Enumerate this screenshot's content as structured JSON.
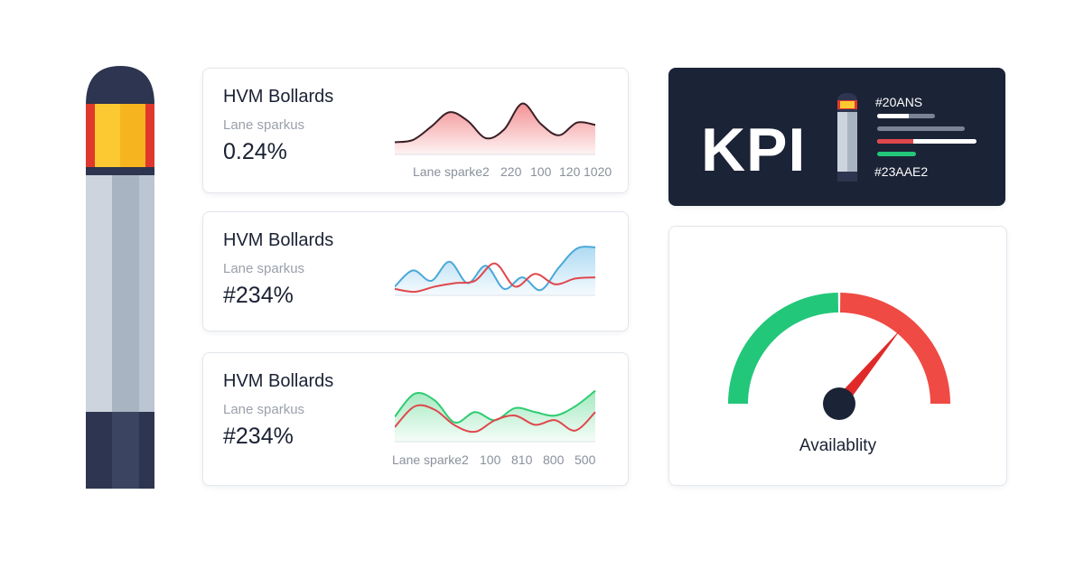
{
  "cards": [
    {
      "title": "HVM Bollards",
      "subtitle": "Lane sparkus",
      "value": "0.24%",
      "axis_labels": [
        "Lane sparke2",
        "220",
        "100",
        "120",
        "1020"
      ],
      "series": [
        {
          "color": "#e0474c",
          "fill": "#f28b8e",
          "line": "#3a1f26",
          "values": [
            18,
            22,
            45,
            70,
            55,
            25,
            40,
            85,
            50,
            30,
            52,
            48
          ]
        }
      ]
    },
    {
      "title": "HVM Bollards",
      "subtitle": "Lane sparkus",
      "value": "#234%",
      "axis_labels": [],
      "series": [
        {
          "color": "#4aa8d8",
          "fill": "#a9d8f2",
          "line": "#4aa8d8",
          "values": [
            12,
            40,
            22,
            55,
            18,
            48,
            8,
            28,
            6,
            45,
            78,
            80
          ]
        },
        {
          "color": "#e0474c",
          "fill": "none",
          "line": "#e0474c",
          "values": [
            8,
            3,
            12,
            18,
            22,
            52,
            12,
            34,
            16,
            26,
            28
          ]
        }
      ]
    },
    {
      "title": "HVM Bollards",
      "subtitle": "Lane sparkus",
      "value": "#234%",
      "axis_labels": [
        "Lane sparke2",
        "100",
        "810",
        "800",
        "500"
      ],
      "series": [
        {
          "color": "#2ecc71",
          "fill": "#9ee8bd",
          "line": "#2ecc71",
          "values": [
            40,
            80,
            68,
            30,
            48,
            34,
            55,
            48,
            42,
            58,
            85
          ]
        },
        {
          "color": "#e0474c",
          "fill": "none",
          "line": "#e0474c",
          "values": [
            22,
            58,
            52,
            25,
            14,
            34,
            42,
            26,
            34,
            16,
            48
          ]
        }
      ]
    }
  ],
  "kpi": {
    "label": "KPI",
    "code_top": "#20ANS",
    "code_bottom": "#23AAE2",
    "bars": [
      {
        "fill": 0.55,
        "color": "#ffffff",
        "track": "#7b8494"
      },
      {
        "fill": 0,
        "color": "#ffffff",
        "track": "#7b8494"
      },
      {
        "fill": 0.36,
        "color": "#e0474c",
        "track": "#ffffff"
      },
      {
        "fill": 1,
        "color": "#22c77a",
        "track": "#22c77a"
      }
    ]
  },
  "gauge": {
    "label": "Availablity",
    "value_fraction": 0.72,
    "colors": {
      "good": "#22c77a",
      "bad": "#ef4a44",
      "needle": "#e02a2a",
      "hub": "#1b2336"
    }
  }
}
